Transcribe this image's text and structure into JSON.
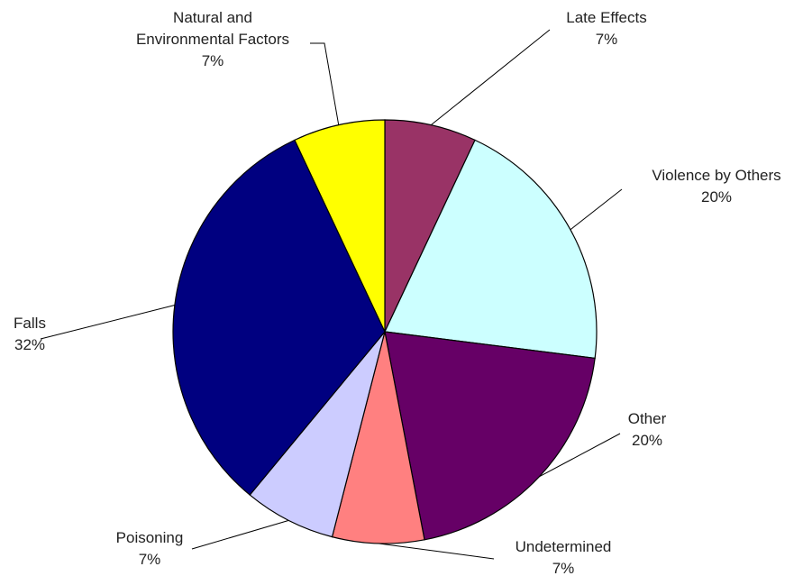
{
  "chart_data": {
    "type": "pie",
    "categories": [
      "Late Effects",
      "Violence by Others",
      "Other",
      "Undetermined",
      "Poisoning",
      "Falls",
      "Natural and\nEnvironmental Factors"
    ],
    "values": [
      7,
      20,
      20,
      7,
      7,
      32,
      7
    ],
    "value_labels": [
      "7%",
      "20%",
      "20%",
      "7%",
      "7%",
      "32%",
      "7%"
    ],
    "colors": [
      "#993366",
      "#ccffff",
      "#660066",
      "#ff8080",
      "#ccccff",
      "#000080",
      "#ffff00"
    ]
  }
}
